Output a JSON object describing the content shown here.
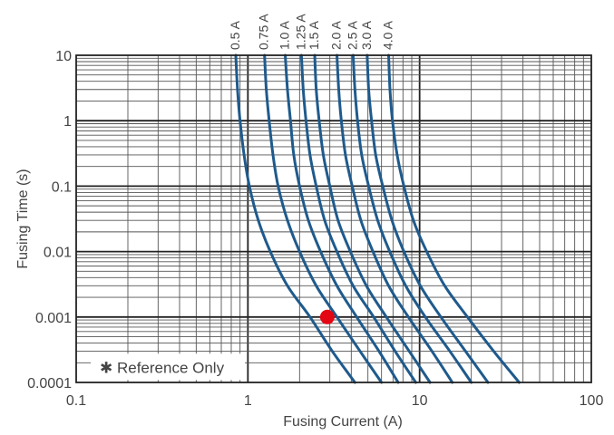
{
  "chart_data": {
    "type": "line",
    "title": "",
    "xlabel": "Fusing Current (A)",
    "ylabel": "Fusing Time (s)",
    "x_scale": "log",
    "y_scale": "log",
    "xlim": [
      0.1,
      100
    ],
    "ylim": [
      0.0001,
      10
    ],
    "x_tick_labels": [
      "0.1",
      "1",
      "10",
      "100"
    ],
    "y_tick_labels": [
      "0.0001",
      "0.001",
      "0.01",
      "0.1",
      "1",
      "10"
    ],
    "grid": true,
    "note": "✱ Reference Only",
    "series_color": "#1f5a8c",
    "series": [
      {
        "name": "0.5 A",
        "points": [
          [
            0.85,
            10
          ],
          [
            0.87,
            3
          ],
          [
            0.9,
            1
          ],
          [
            0.95,
            0.3
          ],
          [
            1.02,
            0.1
          ],
          [
            1.15,
            0.03
          ],
          [
            1.35,
            0.01
          ],
          [
            1.7,
            0.003
          ],
          [
            2.3,
            0.001
          ],
          [
            3.1,
            0.0003
          ],
          [
            4.2,
            0.0001
          ]
        ]
      },
      {
        "name": "0.75 A",
        "points": [
          [
            1.25,
            10
          ],
          [
            1.28,
            3
          ],
          [
            1.33,
            1
          ],
          [
            1.4,
            0.3
          ],
          [
            1.5,
            0.1
          ],
          [
            1.7,
            0.03
          ],
          [
            2.0,
            0.01
          ],
          [
            2.5,
            0.003
          ],
          [
            3.3,
            0.001
          ],
          [
            4.5,
            0.0003
          ],
          [
            6.0,
            0.0001
          ]
        ]
      },
      {
        "name": "1.0 A",
        "points": [
          [
            1.65,
            10
          ],
          [
            1.7,
            3
          ],
          [
            1.77,
            1
          ],
          [
            1.85,
            0.3
          ],
          [
            2.0,
            0.1
          ],
          [
            2.25,
            0.03
          ],
          [
            2.65,
            0.01
          ],
          [
            3.3,
            0.003
          ],
          [
            4.3,
            0.001
          ],
          [
            5.8,
            0.0003
          ],
          [
            7.5,
            0.0001
          ]
        ]
      },
      {
        "name": "1.25 A",
        "points": [
          [
            2.05,
            10
          ],
          [
            2.1,
            3
          ],
          [
            2.18,
            1
          ],
          [
            2.3,
            0.3
          ],
          [
            2.5,
            0.1
          ],
          [
            2.8,
            0.03
          ],
          [
            3.3,
            0.01
          ],
          [
            4.1,
            0.003
          ],
          [
            5.4,
            0.001
          ],
          [
            7.2,
            0.0003
          ],
          [
            9.5,
            0.0001
          ]
        ]
      },
      {
        "name": "1.5 A",
        "points": [
          [
            2.45,
            10
          ],
          [
            2.5,
            3
          ],
          [
            2.6,
            1
          ],
          [
            2.75,
            0.3
          ],
          [
            3.0,
            0.1
          ],
          [
            3.35,
            0.03
          ],
          [
            3.95,
            0.01
          ],
          [
            4.9,
            0.003
          ],
          [
            6.4,
            0.001
          ],
          [
            8.7,
            0.0003
          ],
          [
            11.5,
            0.0001
          ]
        ]
      },
      {
        "name": "2.0 A",
        "points": [
          [
            3.3,
            10
          ],
          [
            3.38,
            3
          ],
          [
            3.5,
            1
          ],
          [
            3.7,
            0.3
          ],
          [
            4.05,
            0.1
          ],
          [
            4.55,
            0.03
          ],
          [
            5.35,
            0.01
          ],
          [
            6.6,
            0.003
          ],
          [
            8.6,
            0.001
          ],
          [
            11.8,
            0.0003
          ],
          [
            15.5,
            0.0001
          ]
        ]
      },
      {
        "name": "2.5 A",
        "points": [
          [
            4.1,
            10
          ],
          [
            4.2,
            3
          ],
          [
            4.35,
            1
          ],
          [
            4.6,
            0.3
          ],
          [
            5.05,
            0.1
          ],
          [
            5.7,
            0.03
          ],
          [
            6.7,
            0.01
          ],
          [
            8.3,
            0.003
          ],
          [
            10.8,
            0.001
          ],
          [
            15.0,
            0.0003
          ],
          [
            20.0,
            0.0001
          ]
        ]
      },
      {
        "name": "3.0 A",
        "points": [
          [
            4.95,
            10
          ],
          [
            5.05,
            3
          ],
          [
            5.25,
            1
          ],
          [
            5.55,
            0.3
          ],
          [
            6.1,
            0.1
          ],
          [
            6.9,
            0.03
          ],
          [
            8.1,
            0.01
          ],
          [
            10.1,
            0.003
          ],
          [
            13.3,
            0.001
          ],
          [
            18.5,
            0.0003
          ],
          [
            25.0,
            0.0001
          ]
        ]
      },
      {
        "name": "4.0 A",
        "points": [
          [
            6.6,
            10
          ],
          [
            6.72,
            3
          ],
          [
            6.95,
            1
          ],
          [
            7.4,
            0.3
          ],
          [
            8.1,
            0.1
          ],
          [
            9.2,
            0.03
          ],
          [
            11.0,
            0.01
          ],
          [
            14.0,
            0.003
          ],
          [
            19.0,
            0.001
          ],
          [
            27.0,
            0.0003
          ],
          [
            38.0,
            0.0001
          ]
        ]
      }
    ],
    "marker": {
      "x": 2.9,
      "y": 0.001,
      "color": "#e30613"
    }
  }
}
